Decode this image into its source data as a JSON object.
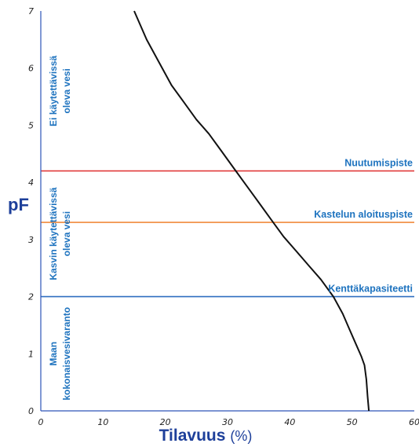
{
  "chart_data": {
    "type": "line",
    "xlabel": "Tilavuus",
    "xunit": "(%)",
    "ylabel": "pF",
    "xlim": [
      0,
      60
    ],
    "ylim": [
      0,
      7
    ],
    "xticks": [
      "0",
      "10",
      "20",
      "30",
      "40",
      "50",
      "60"
    ],
    "yticks": [
      "0",
      "1",
      "2",
      "3",
      "4",
      "5",
      "6",
      "7"
    ],
    "series": [
      {
        "x": [
          15,
          17,
          19,
          21,
          23,
          25,
          27,
          29,
          31,
          33,
          35,
          37,
          39,
          41,
          43,
          45,
          47,
          48.5,
          49.5,
          50.5,
          51.5,
          52,
          52.3,
          52.5,
          52.7
        ],
        "y": [
          7,
          6.5,
          6.1,
          5.7,
          5.4,
          5.1,
          4.85,
          4.55,
          4.25,
          3.95,
          3.65,
          3.35,
          3.05,
          2.8,
          2.55,
          2.3,
          2.0,
          1.7,
          1.45,
          1.2,
          0.95,
          0.8,
          0.55,
          0.25,
          0.0
        ]
      }
    ],
    "reference_lines": [
      {
        "y": 4.2,
        "label": "Nuutumispiste",
        "color": "#e03a3a"
      },
      {
        "y": 3.3,
        "label": "Kastelun aloituspiste",
        "color": "#f08a3c"
      },
      {
        "y": 2.0,
        "label": "Kenttäkapasiteetti",
        "color": "#2f6fc0"
      }
    ],
    "zones": [
      {
        "lines": [
          "Ei käytettävissä",
          "oleva vesi"
        ],
        "y_from": 4.2,
        "y_to": 7.0
      },
      {
        "lines": [
          "Kasvin käytettävissä",
          "oleva vesi"
        ],
        "y_from": 2.0,
        "y_to": 4.2
      },
      {
        "lines": [
          "Maan",
          "kokonaisvesivaranto"
        ],
        "y_from": 0.0,
        "y_to": 2.0
      }
    ],
    "colors": {
      "axis": "#2d55b8",
      "curve": "#111111",
      "text": "#1e73bf",
      "label": "#1d3f9a"
    }
  }
}
